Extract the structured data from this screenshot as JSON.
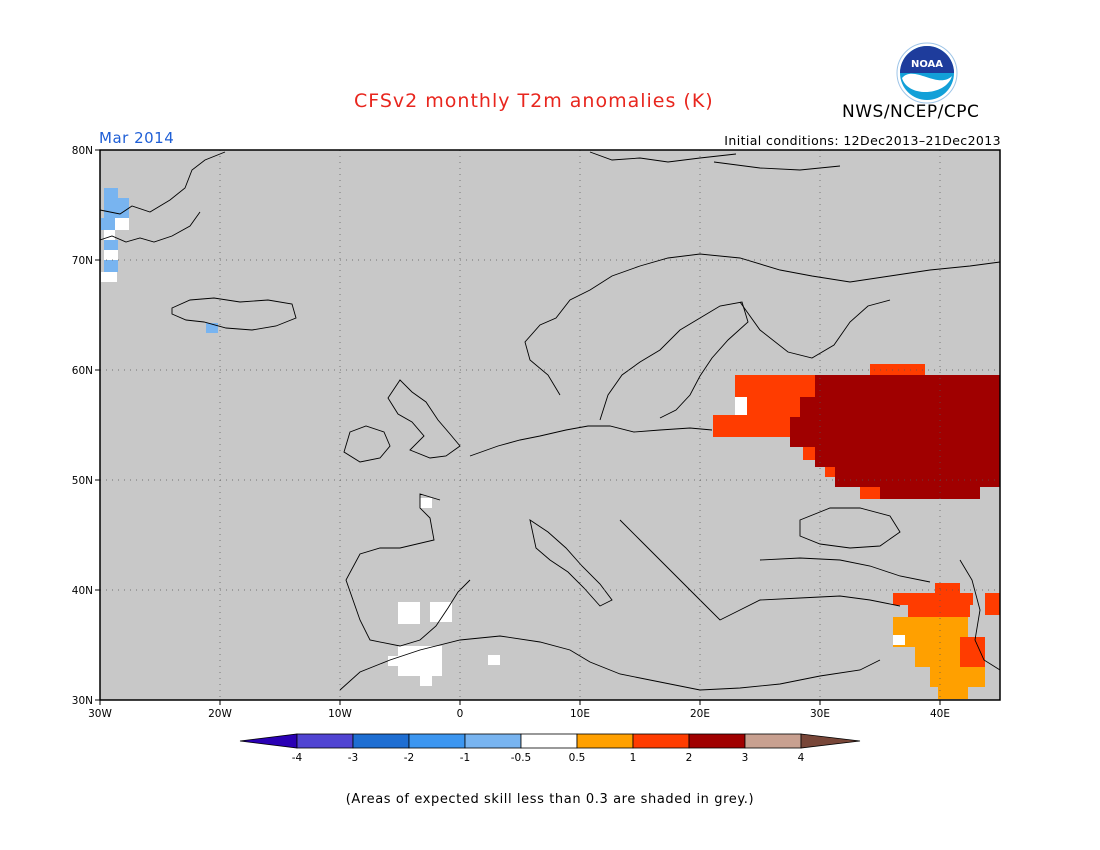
{
  "header": {
    "title": "CFSv2 monthly T2m anomalies (K)",
    "agency": "NWS/NCEP/CPC",
    "logo_text": "NOAA",
    "month": "Mar 2014",
    "initial_conditions": "Initial conditions: 12Dec2013–21Dec2013"
  },
  "map": {
    "lon_range": [
      -30,
      45
    ],
    "lat_range": [
      30,
      80
    ],
    "background_color": "#c8c8c8",
    "grid": "dotted",
    "lat_ticks": [
      {
        "value": 30,
        "label": "30N"
      },
      {
        "value": 40,
        "label": "40N"
      },
      {
        "value": 50,
        "label": "50N"
      },
      {
        "value": 60,
        "label": "60N"
      },
      {
        "value": 70,
        "label": "70N"
      },
      {
        "value": 80,
        "label": "80N"
      }
    ],
    "lon_ticks": [
      {
        "value": -30,
        "label": "30W"
      },
      {
        "value": -20,
        "label": "20W"
      },
      {
        "value": -10,
        "label": "10W"
      },
      {
        "value": 0,
        "label": "0"
      },
      {
        "value": 10,
        "label": "10E"
      },
      {
        "value": 20,
        "label": "20E"
      },
      {
        "value": 30,
        "label": "30E"
      },
      {
        "value": 40,
        "label": "40E"
      }
    ]
  },
  "colorbar": {
    "boundaries": [
      "-4",
      "-3",
      "-2",
      "-1",
      "-0.5",
      "0.5",
      "1",
      "2",
      "3",
      "4"
    ],
    "colors": [
      "#2a00b4",
      "#5044d2",
      "#1e6ed2",
      "#3c96f0",
      "#78b4f0",
      "#ffffff",
      "#ffa000",
      "#ff3c00",
      "#a00000",
      "#c8a090",
      "#784638"
    ]
  },
  "footnote": "(Areas of expected skill less than 0.3 are shaded in grey.)"
}
